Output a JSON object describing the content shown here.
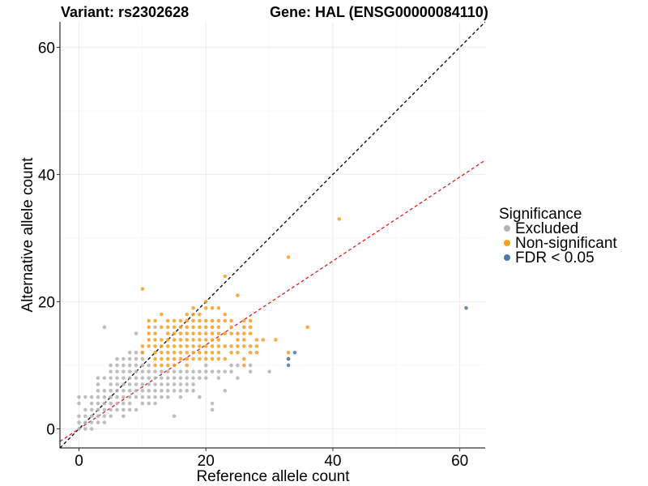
{
  "chart_data": {
    "type": "scatter",
    "title_left": "Variant: rs2302628",
    "title_right": "Gene: HAL (ENSG00000084110)",
    "xlabel": "Reference allele count",
    "ylabel": "Alternative allele count",
    "xlim": [
      -3,
      64
    ],
    "ylim": [
      -3,
      64
    ],
    "xticks": [
      0,
      20,
      40,
      60
    ],
    "yticks": [
      0,
      20,
      40,
      60
    ],
    "grid": true,
    "legend": {
      "title": "Significance",
      "position": "right",
      "entries": [
        {
          "label": "Excluded",
          "color": "#b3b3b3"
        },
        {
          "label": "Non-significant",
          "color": "#f5a023"
        },
        {
          "label": "FDR < 0.05",
          "color": "#4a77a8"
        }
      ]
    },
    "reference_lines": [
      {
        "name": "identity-line",
        "slope": 1,
        "intercept": 0,
        "color": "#000000",
        "dash": "dashed"
      },
      {
        "name": "fit-line",
        "slope": 0.66,
        "intercept": 0,
        "color": "#e41a1c",
        "dash": "dashed"
      }
    ],
    "series": [
      {
        "name": "Excluded",
        "color": "#b3b3b3",
        "points": [
          [
            0,
            0
          ],
          [
            0,
            1
          ],
          [
            0,
            2
          ],
          [
            0,
            4
          ],
          [
            0,
            5
          ],
          [
            1,
            0
          ],
          [
            1,
            1
          ],
          [
            1,
            2
          ],
          [
            1,
            3
          ],
          [
            1,
            5
          ],
          [
            2,
            0
          ],
          [
            2,
            1
          ],
          [
            2,
            2
          ],
          [
            2,
            3
          ],
          [
            2,
            4
          ],
          [
            2,
            5
          ],
          [
            3,
            1
          ],
          [
            3,
            2
          ],
          [
            3,
            3
          ],
          [
            3,
            4
          ],
          [
            3,
            5
          ],
          [
            3,
            6
          ],
          [
            3,
            7
          ],
          [
            3,
            8
          ],
          [
            4,
            1
          ],
          [
            4,
            2
          ],
          [
            4,
            3
          ],
          [
            4,
            4
          ],
          [
            4,
            5
          ],
          [
            4,
            6
          ],
          [
            4,
            8
          ],
          [
            4,
            16
          ],
          [
            5,
            2
          ],
          [
            5,
            3
          ],
          [
            5,
            4
          ],
          [
            5,
            5
          ],
          [
            5,
            6
          ],
          [
            5,
            7
          ],
          [
            5,
            8
          ],
          [
            5,
            9
          ],
          [
            5,
            10
          ],
          [
            6,
            3
          ],
          [
            6,
            4
          ],
          [
            6,
            5
          ],
          [
            6,
            6
          ],
          [
            6,
            7
          ],
          [
            6,
            8
          ],
          [
            6,
            9
          ],
          [
            6,
            10
          ],
          [
            6,
            11
          ],
          [
            7,
            2
          ],
          [
            7,
            3
          ],
          [
            7,
            4
          ],
          [
            7,
            5
          ],
          [
            7,
            6
          ],
          [
            7,
            7
          ],
          [
            7,
            8
          ],
          [
            7,
            9
          ],
          [
            7,
            10
          ],
          [
            7,
            11
          ],
          [
            8,
            3
          ],
          [
            8,
            4
          ],
          [
            8,
            5
          ],
          [
            8,
            6
          ],
          [
            8,
            7
          ],
          [
            8,
            8
          ],
          [
            8,
            9
          ],
          [
            8,
            10
          ],
          [
            8,
            11
          ],
          [
            8,
            12
          ],
          [
            9,
            3
          ],
          [
            9,
            5
          ],
          [
            9,
            6
          ],
          [
            9,
            7
          ],
          [
            9,
            8
          ],
          [
            9,
            9
          ],
          [
            9,
            10
          ],
          [
            9,
            11
          ],
          [
            9,
            12
          ],
          [
            9,
            15
          ],
          [
            10,
            4
          ],
          [
            10,
            5
          ],
          [
            10,
            6
          ],
          [
            10,
            7
          ],
          [
            10,
            8
          ],
          [
            10,
            9
          ],
          [
            10,
            10
          ],
          [
            10,
            11
          ],
          [
            10,
            12
          ],
          [
            11,
            4
          ],
          [
            11,
            5
          ],
          [
            11,
            6
          ],
          [
            11,
            7
          ],
          [
            11,
            8
          ],
          [
            11,
            9
          ],
          [
            11,
            10
          ],
          [
            12,
            5
          ],
          [
            12,
            6
          ],
          [
            12,
            7
          ],
          [
            12,
            8
          ],
          [
            12,
            9
          ],
          [
            12,
            16
          ],
          [
            13,
            5
          ],
          [
            13,
            6
          ],
          [
            13,
            7
          ],
          [
            13,
            8
          ],
          [
            13,
            9
          ],
          [
            14,
            6
          ],
          [
            14,
            7
          ],
          [
            14,
            8
          ],
          [
            14,
            9
          ],
          [
            15,
            2
          ],
          [
            15,
            6
          ],
          [
            15,
            7
          ],
          [
            15,
            8
          ],
          [
            15,
            9
          ],
          [
            16,
            5
          ],
          [
            16,
            6
          ],
          [
            16,
            7
          ],
          [
            16,
            8
          ],
          [
            16,
            9
          ],
          [
            17,
            6
          ],
          [
            17,
            7
          ],
          [
            17,
            8
          ],
          [
            17,
            9
          ],
          [
            18,
            6
          ],
          [
            18,
            7
          ],
          [
            18,
            8
          ],
          [
            18,
            9
          ],
          [
            19,
            5
          ],
          [
            19,
            8
          ],
          [
            19,
            9
          ],
          [
            20,
            8
          ],
          [
            20,
            9
          ],
          [
            20,
            10
          ],
          [
            21,
            3
          ],
          [
            21,
            4
          ],
          [
            21,
            9
          ],
          [
            22,
            8
          ],
          [
            22,
            9
          ],
          [
            23,
            6
          ],
          [
            23,
            9
          ],
          [
            24,
            9
          ],
          [
            24,
            10
          ],
          [
            25,
            8
          ],
          [
            25,
            10
          ],
          [
            27,
            9
          ],
          [
            27,
            10
          ],
          [
            30,
            9
          ],
          [
            12,
            4
          ],
          [
            14,
            5
          ]
        ]
      },
      {
        "name": "Non-significant",
        "color": "#f5a023",
        "points": [
          [
            10,
            22
          ],
          [
            10,
            12
          ],
          [
            10,
            13
          ],
          [
            11,
            13
          ],
          [
            11,
            14
          ],
          [
            11,
            15
          ],
          [
            11,
            16
          ],
          [
            11,
            17
          ],
          [
            12,
            10
          ],
          [
            12,
            11
          ],
          [
            12,
            12
          ],
          [
            12,
            13
          ],
          [
            12,
            14
          ],
          [
            12,
            15
          ],
          [
            12,
            17
          ],
          [
            13,
            10
          ],
          [
            13,
            11
          ],
          [
            13,
            12
          ],
          [
            13,
            13
          ],
          [
            13,
            14
          ],
          [
            13,
            16
          ],
          [
            13,
            18
          ],
          [
            14,
            10
          ],
          [
            14,
            11
          ],
          [
            14,
            12
          ],
          [
            14,
            13
          ],
          [
            14,
            14
          ],
          [
            14,
            15
          ],
          [
            14,
            16
          ],
          [
            14,
            17
          ],
          [
            15,
            10
          ],
          [
            15,
            11
          ],
          [
            15,
            12
          ],
          [
            15,
            13
          ],
          [
            15,
            14
          ],
          [
            15,
            15
          ],
          [
            15,
            16
          ],
          [
            15,
            17
          ],
          [
            16,
            11
          ],
          [
            16,
            12
          ],
          [
            16,
            13
          ],
          [
            16,
            14
          ],
          [
            16,
            15
          ],
          [
            16,
            16
          ],
          [
            16,
            17
          ],
          [
            17,
            10
          ],
          [
            17,
            11
          ],
          [
            17,
            12
          ],
          [
            17,
            13
          ],
          [
            17,
            14
          ],
          [
            17,
            15
          ],
          [
            17,
            16
          ],
          [
            17,
            17
          ],
          [
            17,
            18
          ],
          [
            18,
            11
          ],
          [
            18,
            12
          ],
          [
            18,
            13
          ],
          [
            18,
            14
          ],
          [
            18,
            15
          ],
          [
            18,
            16
          ],
          [
            18,
            17
          ],
          [
            18,
            18
          ],
          [
            18,
            19
          ],
          [
            19,
            11
          ],
          [
            19,
            12
          ],
          [
            19,
            13
          ],
          [
            19,
            14
          ],
          [
            19,
            15
          ],
          [
            19,
            16
          ],
          [
            19,
            17
          ],
          [
            19,
            18
          ],
          [
            20,
            11
          ],
          [
            20,
            12
          ],
          [
            20,
            13
          ],
          [
            20,
            14
          ],
          [
            20,
            15
          ],
          [
            20,
            16
          ],
          [
            20,
            17
          ],
          [
            20,
            19
          ],
          [
            20,
            20
          ],
          [
            21,
            11
          ],
          [
            21,
            12
          ],
          [
            21,
            13
          ],
          [
            21,
            14
          ],
          [
            21,
            15
          ],
          [
            21,
            16
          ],
          [
            21,
            17
          ],
          [
            21,
            19
          ],
          [
            22,
            11
          ],
          [
            22,
            12
          ],
          [
            22,
            13
          ],
          [
            22,
            14
          ],
          [
            22,
            15
          ],
          [
            22,
            16
          ],
          [
            22,
            17
          ],
          [
            22,
            19
          ],
          [
            23,
            11
          ],
          [
            23,
            13
          ],
          [
            23,
            15
          ],
          [
            23,
            17
          ],
          [
            23,
            18
          ],
          [
            23,
            24
          ],
          [
            24,
            12
          ],
          [
            24,
            13
          ],
          [
            24,
            15
          ],
          [
            24,
            16
          ],
          [
            24,
            17
          ],
          [
            25,
            12
          ],
          [
            25,
            13
          ],
          [
            25,
            14
          ],
          [
            25,
            15
          ],
          [
            25,
            21
          ],
          [
            26,
            10
          ],
          [
            26,
            11
          ],
          [
            26,
            13
          ],
          [
            26,
            14
          ],
          [
            26,
            15
          ],
          [
            26,
            16
          ],
          [
            26,
            17
          ],
          [
            27,
            12
          ],
          [
            27,
            13
          ],
          [
            27,
            15
          ],
          [
            27,
            16
          ],
          [
            27,
            17
          ],
          [
            28,
            12
          ],
          [
            28,
            13
          ],
          [
            28,
            14
          ],
          [
            29,
            14
          ],
          [
            31,
            14
          ],
          [
            33,
            11
          ],
          [
            33,
            12
          ],
          [
            33,
            27
          ],
          [
            36,
            16
          ],
          [
            41,
            33
          ]
        ]
      },
      {
        "name": "FDR < 0.05",
        "color": "#4a77a8",
        "points": [
          [
            33,
            10
          ],
          [
            33,
            11
          ],
          [
            34,
            12
          ],
          [
            61,
            19
          ]
        ]
      }
    ]
  }
}
